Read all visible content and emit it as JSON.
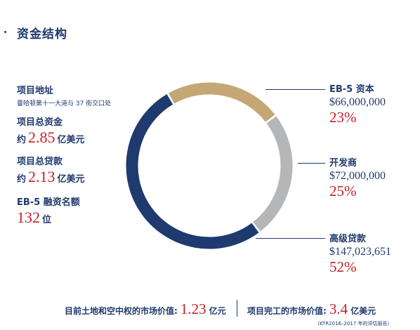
{
  "title": "资金结构",
  "left": {
    "project_address": {
      "label": "项目地址",
      "sub": "曼哈顿第十一大道与 37 街交口处"
    },
    "total_capital": {
      "label": "项目总资金",
      "prefix": "约",
      "value": "2.85",
      "unit": "亿美元"
    },
    "total_loan": {
      "label": "项目总贷款",
      "prefix": "约",
      "value": "2.13",
      "unit": "亿美元"
    },
    "eb5_quota": {
      "label": "EB-5 融资名额",
      "value": "132",
      "unit": "位"
    }
  },
  "chart_data": {
    "type": "pie",
    "donut": true,
    "slices": [
      {
        "label": "EB-5 资本",
        "amount": "$66,000,000",
        "percent_label": "23%",
        "value": 23,
        "color": "#c4a774"
      },
      {
        "label": "开发商",
        "amount": "$72,000,000",
        "percent_label": "25%",
        "value": 25,
        "color": "#b5b6b8"
      },
      {
        "label": "高级贷款",
        "amount": "$147,023,651",
        "percent_label": "52%",
        "value": 52,
        "color": "#1f3a6e"
      }
    ]
  },
  "bottom": {
    "market_label": "目前土地和空中权的市场价值:",
    "market_value": "1.23",
    "market_unit": "亿元",
    "completion_label": "项目完工的市场价值:",
    "completion_value": "3.4",
    "completion_unit": "亿美元",
    "source": "（KTR2016–2017 年的评估报告）"
  }
}
